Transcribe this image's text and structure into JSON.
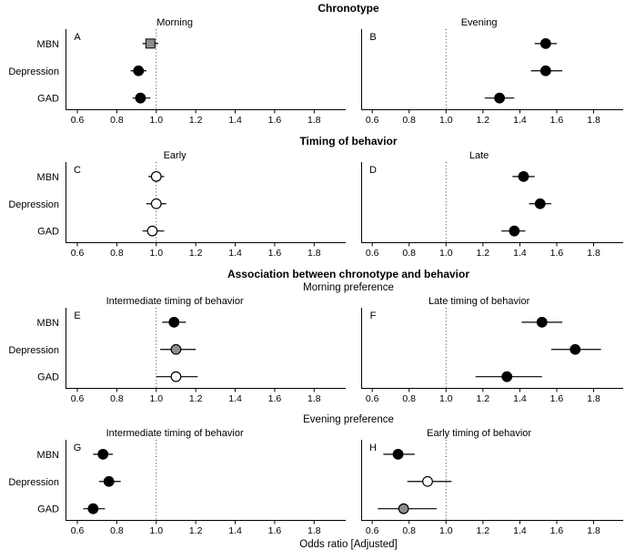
{
  "chart_data": {
    "type": "scatter",
    "subtype": "forest-plot-grid",
    "xlabel": "Odds ratio [Adjusted]",
    "x_ticks": [
      "0.6",
      "0.8",
      "1.0",
      "1.2",
      "1.4",
      "1.6",
      "1.8"
    ],
    "xlim": [
      0.54,
      1.96
    ],
    "reference_line": 1.0,
    "grid": false,
    "legend": "none",
    "categories": [
      "MBN",
      "Depression",
      "GAD"
    ],
    "marker_colors": {
      "black": "#000000",
      "gray": "#8c8c8c",
      "open": "#ffffff"
    },
    "sections": [
      {
        "header": "Chronotype",
        "subheader": "",
        "panels": [
          {
            "label": "A",
            "title": "Morning",
            "points": [
              {
                "category": "MBN",
                "value": 0.97,
                "ci_low": 0.93,
                "ci_high": 1.01,
                "shape": "square",
                "fill": "gray"
              },
              {
                "category": "Depression",
                "value": 0.91,
                "ci_low": 0.87,
                "ci_high": 0.95,
                "shape": "circle",
                "fill": "black"
              },
              {
                "category": "GAD",
                "value": 0.92,
                "ci_low": 0.88,
                "ci_high": 0.97,
                "shape": "circle",
                "fill": "black"
              }
            ]
          },
          {
            "label": "B",
            "title": "Evening",
            "points": [
              {
                "category": "MBN",
                "value": 1.54,
                "ci_low": 1.48,
                "ci_high": 1.6,
                "shape": "circle",
                "fill": "black"
              },
              {
                "category": "Depression",
                "value": 1.54,
                "ci_low": 1.46,
                "ci_high": 1.63,
                "shape": "circle",
                "fill": "black"
              },
              {
                "category": "GAD",
                "value": 1.29,
                "ci_low": 1.21,
                "ci_high": 1.37,
                "shape": "circle",
                "fill": "black"
              }
            ]
          }
        ]
      },
      {
        "header": "Timing of behavior",
        "subheader": "",
        "panels": [
          {
            "label": "C",
            "title": "Early",
            "points": [
              {
                "category": "MBN",
                "value": 1.0,
                "ci_low": 0.96,
                "ci_high": 1.04,
                "shape": "circle",
                "fill": "open"
              },
              {
                "category": "Depression",
                "value": 1.0,
                "ci_low": 0.95,
                "ci_high": 1.05,
                "shape": "circle",
                "fill": "open"
              },
              {
                "category": "GAD",
                "value": 0.98,
                "ci_low": 0.93,
                "ci_high": 1.04,
                "shape": "circle",
                "fill": "open"
              }
            ]
          },
          {
            "label": "D",
            "title": "Late",
            "points": [
              {
                "category": "MBN",
                "value": 1.42,
                "ci_low": 1.36,
                "ci_high": 1.48,
                "shape": "circle",
                "fill": "black"
              },
              {
                "category": "Depression",
                "value": 1.51,
                "ci_low": 1.45,
                "ci_high": 1.57,
                "shape": "circle",
                "fill": "black"
              },
              {
                "category": "GAD",
                "value": 1.37,
                "ci_low": 1.3,
                "ci_high": 1.43,
                "shape": "circle",
                "fill": "black"
              }
            ]
          }
        ]
      },
      {
        "header": "Association between chronotype and behavior",
        "subheader": "Morning preference",
        "panels": [
          {
            "label": "E",
            "title": "Intermediate timing of behavior",
            "points": [
              {
                "category": "MBN",
                "value": 1.09,
                "ci_low": 1.03,
                "ci_high": 1.15,
                "shape": "circle",
                "fill": "black"
              },
              {
                "category": "Depression",
                "value": 1.1,
                "ci_low": 1.02,
                "ci_high": 1.2,
                "shape": "circle",
                "fill": "gray"
              },
              {
                "category": "GAD",
                "value": 1.1,
                "ci_low": 1.0,
                "ci_high": 1.21,
                "shape": "circle",
                "fill": "open"
              }
            ]
          },
          {
            "label": "F",
            "title": "Late timing of behavior",
            "points": [
              {
                "category": "MBN",
                "value": 1.52,
                "ci_low": 1.41,
                "ci_high": 1.63,
                "shape": "circle",
                "fill": "black"
              },
              {
                "category": "Depression",
                "value": 1.7,
                "ci_low": 1.57,
                "ci_high": 1.84,
                "shape": "circle",
                "fill": "black"
              },
              {
                "category": "GAD",
                "value": 1.33,
                "ci_low": 1.16,
                "ci_high": 1.52,
                "shape": "circle",
                "fill": "black"
              }
            ]
          }
        ]
      },
      {
        "header": "",
        "subheader": "Evening preference",
        "panels": [
          {
            "label": "G",
            "title": "Intermediate timing of behavior",
            "points": [
              {
                "category": "MBN",
                "value": 0.73,
                "ci_low": 0.68,
                "ci_high": 0.78,
                "shape": "circle",
                "fill": "black"
              },
              {
                "category": "Depression",
                "value": 0.76,
                "ci_low": 0.71,
                "ci_high": 0.82,
                "shape": "circle",
                "fill": "black"
              },
              {
                "category": "GAD",
                "value": 0.68,
                "ci_low": 0.63,
                "ci_high": 0.74,
                "shape": "circle",
                "fill": "black"
              }
            ]
          },
          {
            "label": "H",
            "title": "Early timing of behavior",
            "points": [
              {
                "category": "MBN",
                "value": 0.74,
                "ci_low": 0.66,
                "ci_high": 0.83,
                "shape": "circle",
                "fill": "black"
              },
              {
                "category": "Depression",
                "value": 0.9,
                "ci_low": 0.79,
                "ci_high": 1.03,
                "shape": "circle",
                "fill": "open"
              },
              {
                "category": "GAD",
                "value": 0.77,
                "ci_low": 0.63,
                "ci_high": 0.95,
                "shape": "circle",
                "fill": "gray"
              }
            ]
          }
        ]
      }
    ]
  }
}
